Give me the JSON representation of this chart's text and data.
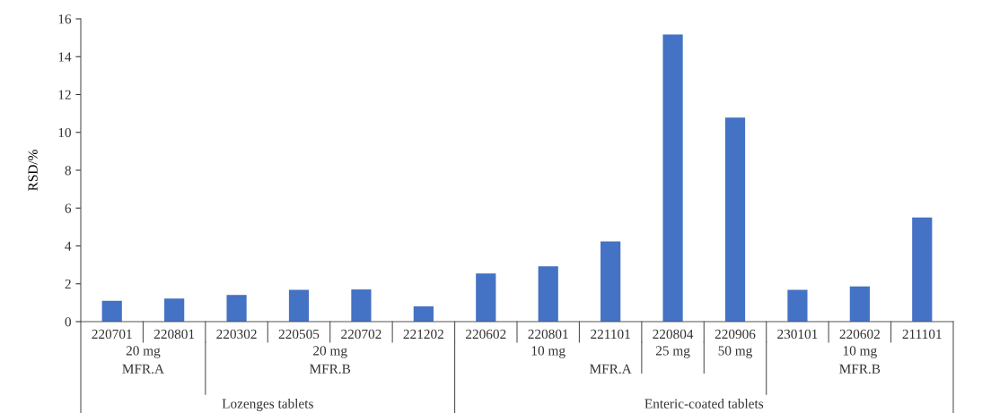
{
  "chart_data": {
    "type": "bar",
    "ylabel": "RSD/%",
    "categories": [
      "220701",
      "220801",
      "220302",
      "220505",
      "220702",
      "221202",
      "220602",
      "220801",
      "221101",
      "220804",
      "220906",
      "230101",
      "220602",
      "211101"
    ],
    "values": [
      1.1,
      1.22,
      1.41,
      1.68,
      1.7,
      0.81,
      2.55,
      2.92,
      4.24,
      15.17,
      10.78,
      1.68,
      1.86,
      5.5
    ],
    "color": "#4472c4",
    "ylim": [
      0,
      16
    ],
    "yticks": [
      0,
      2,
      4,
      6,
      8,
      10,
      12,
      14,
      16
    ],
    "grid": false,
    "annotations": [
      "20 mg",
      "MFR.A",
      "20 mg",
      "MFR.B",
      "10 mg",
      "25 mg",
      "50 mg",
      "MFR.A",
      "10 mg",
      "MFR.B",
      "Lozenges tablets",
      "Enteric-coated tablets"
    ]
  }
}
